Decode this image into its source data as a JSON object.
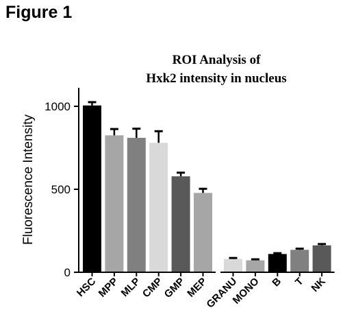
{
  "figure_label": "Figure 1",
  "chart_data": {
    "type": "bar",
    "title_lines": [
      "ROI Analysis of",
      "Hxk2 intensity in nucleus"
    ],
    "xlabel": "",
    "ylabel": "Fluorescence Intensity",
    "ylim": [
      0,
      1100
    ],
    "yticks": [
      0,
      500,
      1000
    ],
    "grid": false,
    "legend": "none",
    "categories": [
      "HSC",
      "MPP",
      "MLP",
      "CMP",
      "GMP",
      "MEP",
      "GRANU",
      "MONO",
      "B",
      "T",
      "NK"
    ],
    "values": [
      1005,
      825,
      810,
      780,
      578,
      478,
      80,
      72,
      110,
      135,
      162
    ],
    "errors": [
      20,
      38,
      55,
      70,
      22,
      25,
      6,
      6,
      5,
      7,
      8
    ],
    "colors": [
      "#000000",
      "#a6a6a6",
      "#808080",
      "#d9d9d9",
      "#595959",
      "#a6a6a6",
      "#d9d9d9",
      "#a6a6a6",
      "#000000",
      "#808080",
      "#595959"
    ],
    "groups": [
      [
        0,
        1,
        2,
        3,
        4,
        5
      ],
      [
        6,
        7,
        8,
        9,
        10
      ]
    ]
  }
}
